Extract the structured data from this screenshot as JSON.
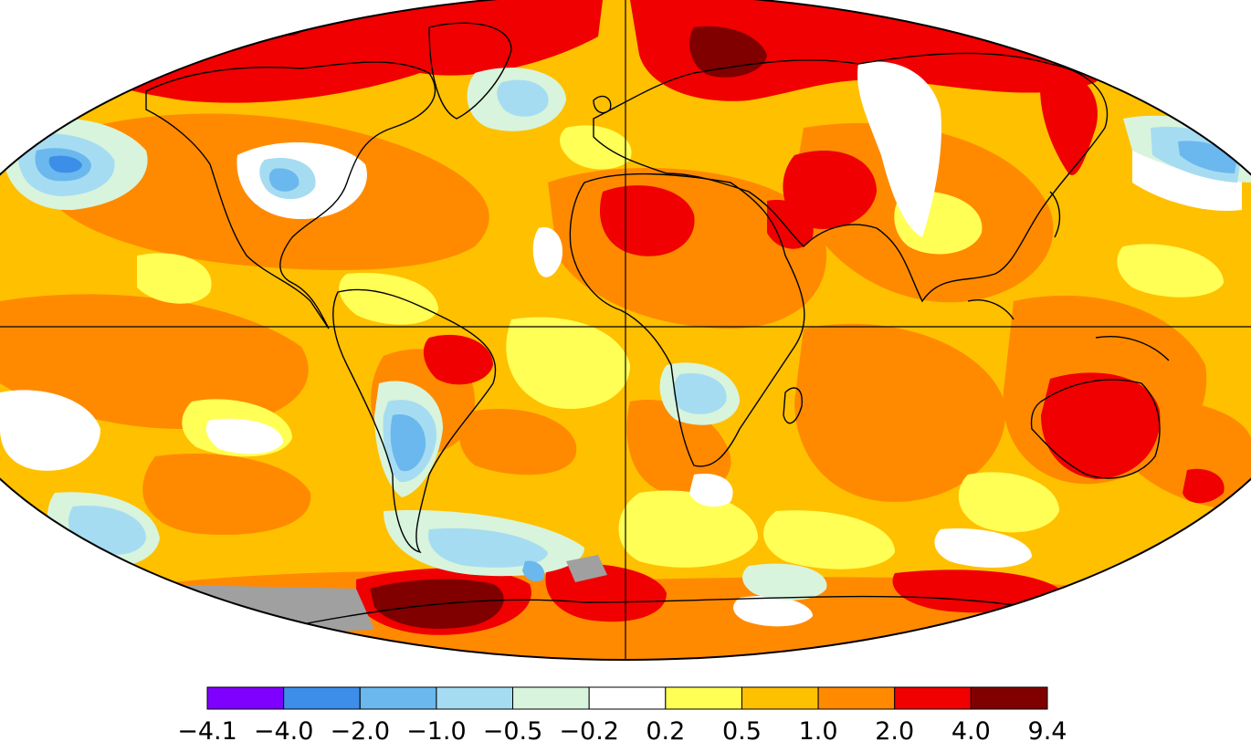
{
  "legend": {
    "bins": [
      {
        "color": "#8000ff"
      },
      {
        "color": "#3d8ee8"
      },
      {
        "color": "#6bb8ee"
      },
      {
        "color": "#a6dcf2"
      },
      {
        "color": "#d8f4dc"
      },
      {
        "color": "#ffffff"
      },
      {
        "color": "#ffff55"
      },
      {
        "color": "#ffc000"
      },
      {
        "color": "#ff8a00"
      },
      {
        "color": "#f00000"
      },
      {
        "color": "#800000"
      }
    ],
    "ticks": [
      "−4.1",
      "−4.0",
      "−2.0",
      "−1.0",
      "−0.5",
      "−0.2",
      "0.2",
      "0.5",
      "1.0",
      "2.0",
      "4.0",
      "9.4"
    ]
  },
  "map": {
    "background_color": "#ffc000",
    "no_data_color": "#a0a0a0",
    "anomaly_colors": {
      "strong_warm": "#800000",
      "warm": "#f00000",
      "moderate_warm": "#ff8a00",
      "mild_warm": "#ffc000",
      "slight_warm": "#ffff55",
      "neutral": "#ffffff",
      "slight_cool": "#d8f4dc",
      "mild_cool": "#a6dcf2",
      "moderate_cool": "#6bb8ee",
      "cool": "#3d8ee8"
    }
  }
}
